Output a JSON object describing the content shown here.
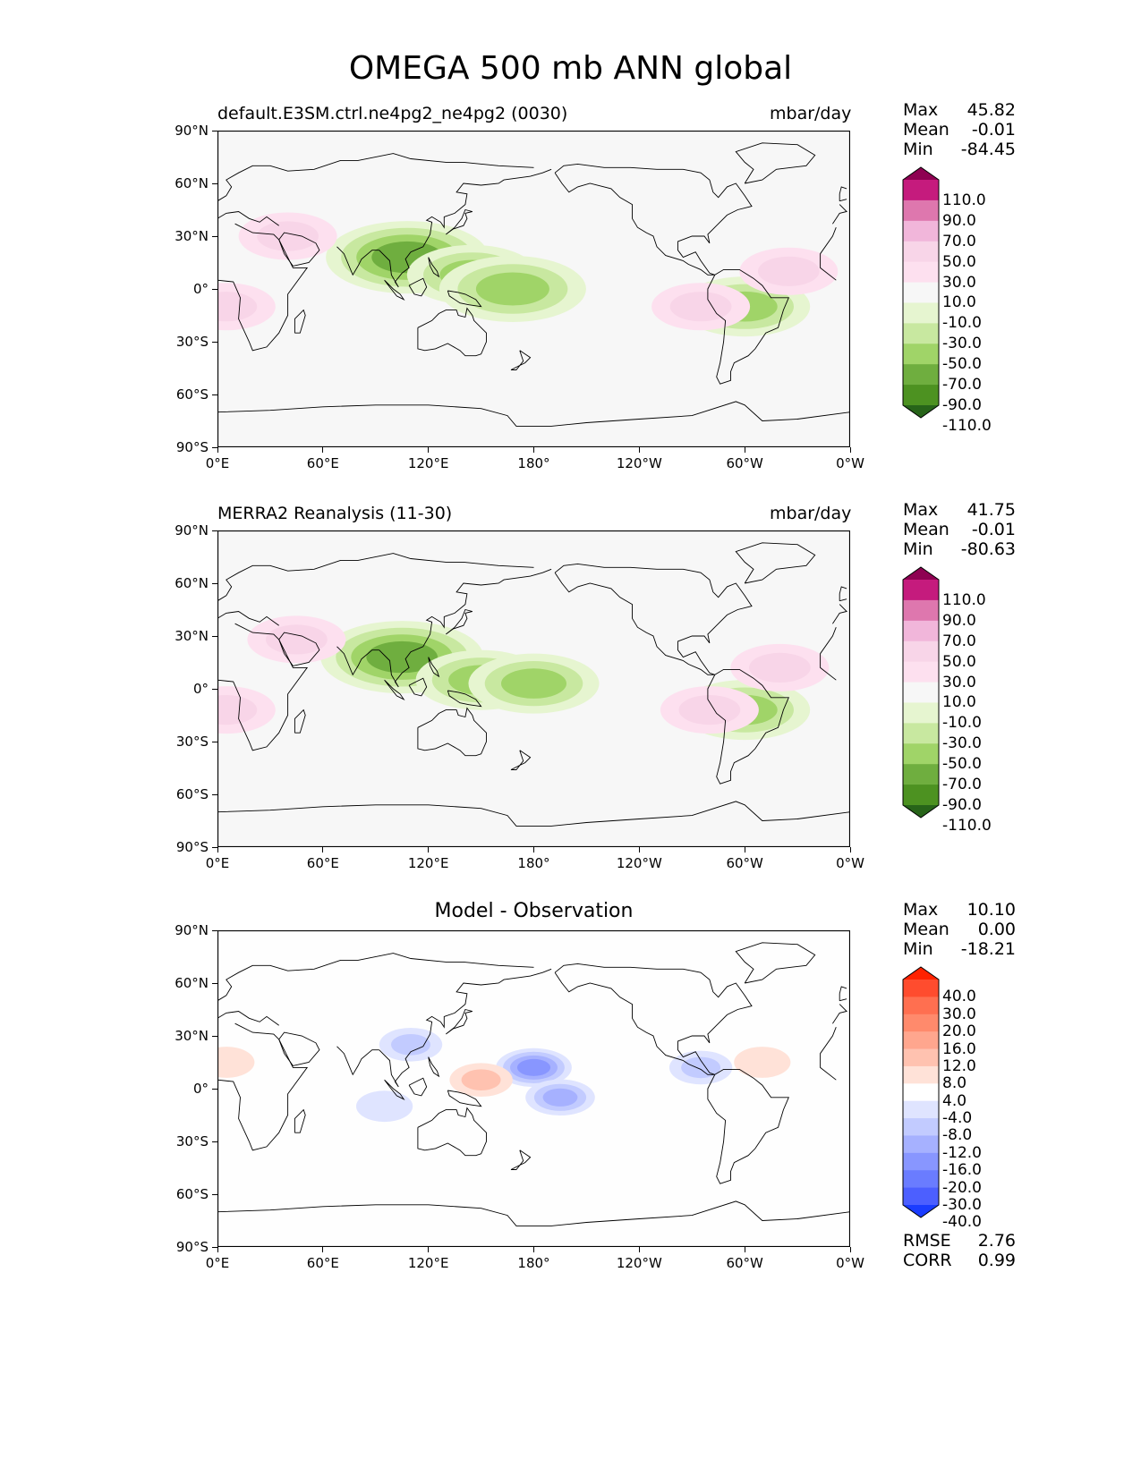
{
  "title": "OMEGA 500 mb ANN global",
  "x_tick_labels": [
    "0°E",
    "60°E",
    "120°E",
    "180°",
    "120°W",
    "60°W",
    "0°W"
  ],
  "y_tick_labels": [
    "90°N",
    "60°N",
    "30°N",
    "0°",
    "30°S",
    "60°S",
    "90°S"
  ],
  "panels": [
    {
      "title_left": "default.E3SM.ctrl.ne4pg2_ne4pg2 (0030)",
      "title_right": "mbar/day",
      "stats": [
        {
          "label": "Max",
          "value": "45.82"
        },
        {
          "label": "Mean",
          "value": "-0.01"
        },
        {
          "label": "Min",
          "value": "-84.45"
        }
      ],
      "colorbar": {
        "labels": [
          "110.0",
          "90.0",
          "70.0",
          "50.0",
          "30.0",
          "10.0",
          "-10.0",
          "-30.0",
          "-50.0",
          "-70.0",
          "-90.0",
          "-110.0"
        ],
        "colors": [
          "#8e0152",
          "#c51b7d",
          "#de77ae",
          "#f1b6da",
          "#f8d5e8",
          "#fde0ef",
          "#f7f7f7",
          "#e6f5d0",
          "#c8e8a0",
          "#a0d468",
          "#6fae3f",
          "#4d9221",
          "#276419"
        ]
      }
    },
    {
      "title_left": "MERRA2 Reanalysis (11-30)",
      "title_right": "mbar/day",
      "stats": [
        {
          "label": "Max",
          "value": "41.75"
        },
        {
          "label": "Mean",
          "value": "-0.01"
        },
        {
          "label": "Min",
          "value": "-80.63"
        }
      ],
      "colorbar": {
        "labels": [
          "110.0",
          "90.0",
          "70.0",
          "50.0",
          "30.0",
          "10.0",
          "-10.0",
          "-30.0",
          "-50.0",
          "-70.0",
          "-90.0",
          "-110.0"
        ],
        "colors": [
          "#8e0152",
          "#c51b7d",
          "#de77ae",
          "#f1b6da",
          "#f8d5e8",
          "#fde0ef",
          "#f7f7f7",
          "#e6f5d0",
          "#c8e8a0",
          "#a0d468",
          "#6fae3f",
          "#4d9221",
          "#276419"
        ]
      }
    },
    {
      "title_center": "Model - Observation",
      "stats": [
        {
          "label": "Max",
          "value": "10.10"
        },
        {
          "label": "Mean",
          "value": "0.00"
        },
        {
          "label": "Min",
          "value": "-18.21"
        }
      ],
      "colorbar": {
        "labels": [
          "40.0",
          "30.0",
          "20.0",
          "16.0",
          "12.0",
          "8.0",
          "4.0",
          "-4.0",
          "-8.0",
          "-12.0",
          "-16.0",
          "-20.0",
          "-30.0",
          "-40.0"
        ],
        "colors": [
          "#ff2200",
          "#ff4c2e",
          "#ff6f50",
          "#ff8a6c",
          "#ffa68e",
          "#ffc2b0",
          "#ffe2d8",
          "#ffffff",
          "#dfe4ff",
          "#c2cbff",
          "#a6b1ff",
          "#8896ff",
          "#6a7cff",
          "#4c5fff",
          "#1a3cff"
        ]
      },
      "metrics": [
        {
          "label": "RMSE",
          "value": "2.76"
        },
        {
          "label": "CORR",
          "value": "0.99"
        }
      ]
    }
  ],
  "chart_data": [
    {
      "type": "heatmap",
      "title": "default.E3SM.ctrl.ne4pg2_ne4pg2 (0030)",
      "units": "mbar/day",
      "xlim": [
        0,
        360
      ],
      "ylim": [
        -90,
        90
      ],
      "levels": [
        -110,
        -90,
        -70,
        -50,
        -30,
        -10,
        10,
        30,
        50,
        70,
        90,
        110
      ],
      "stats": {
        "max": 45.82,
        "mean": -0.01,
        "min": -84.45
      },
      "features": [
        {
          "lon": 108,
          "lat": 18,
          "value": -70,
          "kind": "descent-min"
        },
        {
          "lon": 145,
          "lat": 8,
          "value": -50
        },
        {
          "lon": 168,
          "lat": 0,
          "value": -60
        },
        {
          "lon": 300,
          "lat": -10,
          "value": -50
        },
        {
          "lon": 5,
          "lat": -10,
          "value": 30
        },
        {
          "lon": 40,
          "lat": 30,
          "value": 30
        },
        {
          "lon": 325,
          "lat": 10,
          "value": 30
        },
        {
          "lon": 275,
          "lat": -10,
          "value": 30
        }
      ]
    },
    {
      "type": "heatmap",
      "title": "MERRA2 Reanalysis (11-30)",
      "units": "mbar/day",
      "xlim": [
        0,
        360
      ],
      "ylim": [
        -90,
        90
      ],
      "levels": [
        -110,
        -90,
        -70,
        -50,
        -30,
        -10,
        10,
        30,
        50,
        70,
        90,
        110
      ],
      "stats": {
        "max": 41.75,
        "mean": -0.01,
        "min": -80.63
      },
      "features": [
        {
          "lon": 105,
          "lat": 18,
          "value": -70,
          "kind": "descent-min"
        },
        {
          "lon": 150,
          "lat": 5,
          "value": -50
        },
        {
          "lon": 180,
          "lat": 3,
          "value": -50
        },
        {
          "lon": 300,
          "lat": -12,
          "value": -50
        },
        {
          "lon": 5,
          "lat": -12,
          "value": 30
        },
        {
          "lon": 45,
          "lat": 28,
          "value": 30
        },
        {
          "lon": 320,
          "lat": 12,
          "value": 30
        },
        {
          "lon": 280,
          "lat": -12,
          "value": 30
        }
      ]
    },
    {
      "type": "heatmap",
      "title": "Model - Observation",
      "xlim": [
        0,
        360
      ],
      "ylim": [
        -90,
        90
      ],
      "levels": [
        -40,
        -30,
        -20,
        -16,
        -12,
        -8,
        -4,
        4,
        8,
        12,
        16,
        20,
        30,
        40
      ],
      "stats": {
        "max": 10.1,
        "mean": 0.0,
        "min": -18.21
      },
      "metrics": {
        "rmse": 2.76,
        "corr": 0.99
      },
      "features": [
        {
          "lon": 180,
          "lat": 12,
          "value": -16
        },
        {
          "lon": 195,
          "lat": -5,
          "value": -12
        },
        {
          "lon": 110,
          "lat": 25,
          "value": -8
        },
        {
          "lon": 275,
          "lat": 12,
          "value": -8
        },
        {
          "lon": 150,
          "lat": 5,
          "value": 8
        },
        {
          "lon": 5,
          "lat": 15,
          "value": 4
        },
        {
          "lon": 310,
          "lat": 15,
          "value": 4
        },
        {
          "lon": 95,
          "lat": -10,
          "value": -4
        }
      ]
    }
  ]
}
